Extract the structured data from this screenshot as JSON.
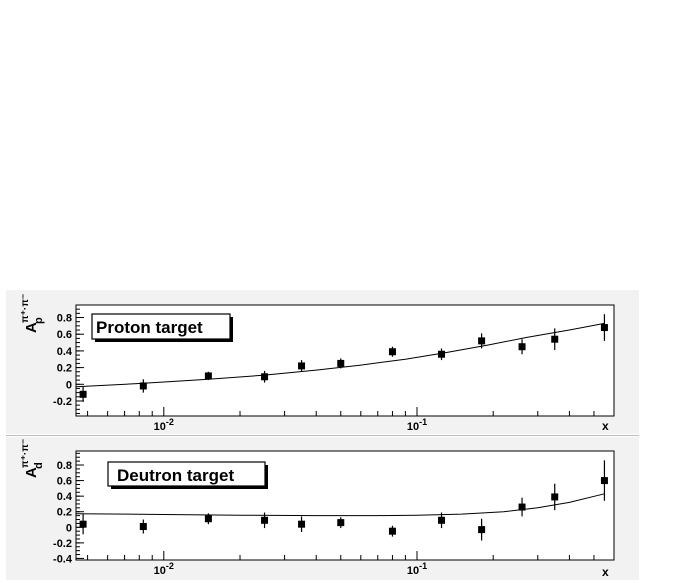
{
  "colors": {
    "panel_background": "#f2f2f2",
    "frame_background": "#ffffff",
    "ink": "#000000"
  },
  "chart_data": [
    {
      "type": "scatter",
      "legend": "Proton target",
      "legend_placement": "top-left",
      "ylabel": "A_p^{π+-π-}",
      "xlabel": "x",
      "x_scale": "log",
      "xlim": [
        0.0045,
        0.6
      ],
      "ylim": [
        -0.38,
        0.95
      ],
      "x_tick_labels": [
        "10^-2",
        "10^-1"
      ],
      "y_tick_labels": [
        "-0.2",
        "0",
        "0.2",
        "0.4",
        "0.6",
        "0.8"
      ],
      "x_tick_values": [
        0.01,
        0.1
      ],
      "y_tick_values": [
        -0.2,
        0,
        0.2,
        0.4,
        0.6,
        0.8
      ],
      "grid": false,
      "series": [
        {
          "x": [
            0.0048,
            0.0083,
            0.015,
            0.025,
            0.035,
            0.05,
            0.08,
            0.125,
            0.18,
            0.26,
            0.35,
            0.55
          ],
          "y": [
            -0.12,
            -0.02,
            0.1,
            0.09,
            0.22,
            0.25,
            0.39,
            0.36,
            0.52,
            0.45,
            0.54,
            0.68
          ],
          "err": [
            0.09,
            0.08,
            0.05,
            0.07,
            0.07,
            0.06,
            0.06,
            0.07,
            0.09,
            0.09,
            0.13,
            0.16
          ]
        }
      ],
      "fit_curve": {
        "x": [
          0.0045,
          0.008,
          0.015,
          0.025,
          0.04,
          0.06,
          0.09,
          0.13,
          0.19,
          0.27,
          0.4,
          0.55
        ],
        "y": [
          -0.03,
          0.01,
          0.06,
          0.11,
          0.17,
          0.23,
          0.3,
          0.38,
          0.47,
          0.56,
          0.65,
          0.73
        ]
      }
    },
    {
      "type": "scatter",
      "legend": "Deutron target",
      "legend_placement": "top-left",
      "ylabel": "A_d^{π+-π-}",
      "xlabel": "x",
      "x_scale": "log",
      "xlim": [
        0.0045,
        0.6
      ],
      "ylim": [
        -0.42,
        0.98
      ],
      "x_tick_labels": [
        "10^-2",
        "10^-1"
      ],
      "y_tick_labels": [
        "-0.4",
        "-0.2",
        "0",
        "0.2",
        "0.4",
        "0.6",
        "0.8"
      ],
      "x_tick_values": [
        0.01,
        0.1
      ],
      "y_tick_values": [
        -0.4,
        -0.2,
        0,
        0.2,
        0.4,
        0.6,
        0.8
      ],
      "grid": false,
      "series": [
        {
          "x": [
            0.0048,
            0.0083,
            0.015,
            0.025,
            0.035,
            0.05,
            0.08,
            0.125,
            0.18,
            0.26,
            0.35,
            0.55
          ],
          "y": [
            0.04,
            0.01,
            0.11,
            0.09,
            0.04,
            0.06,
            -0.05,
            0.09,
            -0.03,
            0.26,
            0.39,
            0.6
          ],
          "err": [
            0.13,
            0.09,
            0.07,
            0.1,
            0.1,
            0.07,
            0.07,
            0.1,
            0.14,
            0.12,
            0.17,
            0.26
          ]
        }
      ],
      "fit_curve": {
        "x": [
          0.0045,
          0.01,
          0.02,
          0.04,
          0.07,
          0.1,
          0.15,
          0.22,
          0.3,
          0.4,
          0.55
        ],
        "y": [
          0.175,
          0.165,
          0.155,
          0.15,
          0.15,
          0.155,
          0.17,
          0.2,
          0.25,
          0.32,
          0.43
        ]
      }
    }
  ]
}
